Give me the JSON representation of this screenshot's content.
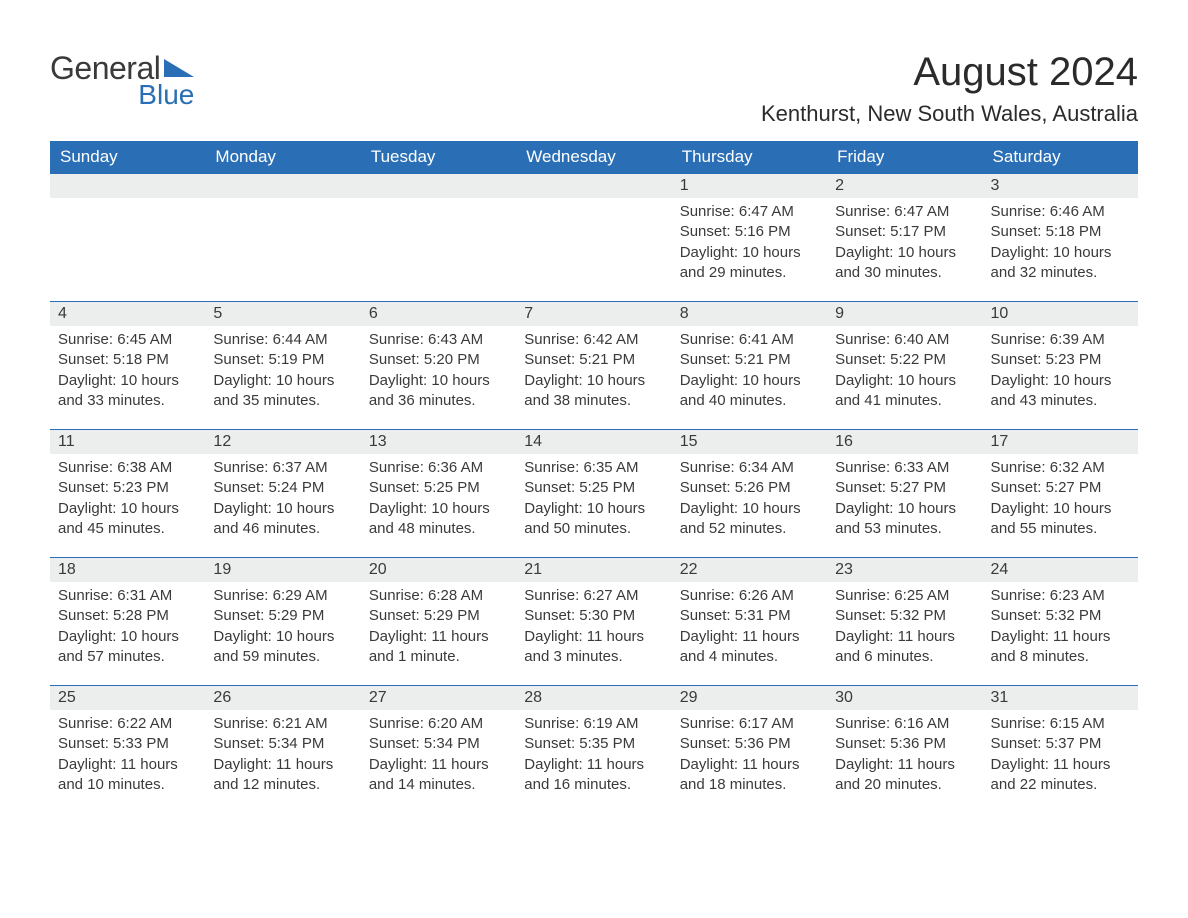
{
  "logo": {
    "general": "General",
    "blue": "Blue",
    "triangle_color": "#2a6fb5"
  },
  "title": "August 2024",
  "location": "Kenthurst, New South Wales, Australia",
  "dow": [
    "Sunday",
    "Monday",
    "Tuesday",
    "Wednesday",
    "Thursday",
    "Friday",
    "Saturday"
  ],
  "colors": {
    "header_bg": "#2a6fb5",
    "header_fg": "#ffffff",
    "daynum_bg": "#eceded",
    "text": "#3a3a3a",
    "row_border": "#2a6fb5",
    "page_bg": "#ffffff"
  },
  "typography": {
    "title_fontsize": 40,
    "location_fontsize": 22,
    "dow_fontsize": 17,
    "daynum_fontsize": 16,
    "body_fontsize": 15,
    "font_family": "Arial"
  },
  "layout": {
    "columns": 7,
    "rows": 5,
    "leading_blanks": 4
  },
  "days": [
    {
      "n": "1",
      "sunrise": "Sunrise: 6:47 AM",
      "sunset": "Sunset: 5:16 PM",
      "daylight": "Daylight: 10 hours and 29 minutes."
    },
    {
      "n": "2",
      "sunrise": "Sunrise: 6:47 AM",
      "sunset": "Sunset: 5:17 PM",
      "daylight": "Daylight: 10 hours and 30 minutes."
    },
    {
      "n": "3",
      "sunrise": "Sunrise: 6:46 AM",
      "sunset": "Sunset: 5:18 PM",
      "daylight": "Daylight: 10 hours and 32 minutes."
    },
    {
      "n": "4",
      "sunrise": "Sunrise: 6:45 AM",
      "sunset": "Sunset: 5:18 PM",
      "daylight": "Daylight: 10 hours and 33 minutes."
    },
    {
      "n": "5",
      "sunrise": "Sunrise: 6:44 AM",
      "sunset": "Sunset: 5:19 PM",
      "daylight": "Daylight: 10 hours and 35 minutes."
    },
    {
      "n": "6",
      "sunrise": "Sunrise: 6:43 AM",
      "sunset": "Sunset: 5:20 PM",
      "daylight": "Daylight: 10 hours and 36 minutes."
    },
    {
      "n": "7",
      "sunrise": "Sunrise: 6:42 AM",
      "sunset": "Sunset: 5:21 PM",
      "daylight": "Daylight: 10 hours and 38 minutes."
    },
    {
      "n": "8",
      "sunrise": "Sunrise: 6:41 AM",
      "sunset": "Sunset: 5:21 PM",
      "daylight": "Daylight: 10 hours and 40 minutes."
    },
    {
      "n": "9",
      "sunrise": "Sunrise: 6:40 AM",
      "sunset": "Sunset: 5:22 PM",
      "daylight": "Daylight: 10 hours and 41 minutes."
    },
    {
      "n": "10",
      "sunrise": "Sunrise: 6:39 AM",
      "sunset": "Sunset: 5:23 PM",
      "daylight": "Daylight: 10 hours and 43 minutes."
    },
    {
      "n": "11",
      "sunrise": "Sunrise: 6:38 AM",
      "sunset": "Sunset: 5:23 PM",
      "daylight": "Daylight: 10 hours and 45 minutes."
    },
    {
      "n": "12",
      "sunrise": "Sunrise: 6:37 AM",
      "sunset": "Sunset: 5:24 PM",
      "daylight": "Daylight: 10 hours and 46 minutes."
    },
    {
      "n": "13",
      "sunrise": "Sunrise: 6:36 AM",
      "sunset": "Sunset: 5:25 PM",
      "daylight": "Daylight: 10 hours and 48 minutes."
    },
    {
      "n": "14",
      "sunrise": "Sunrise: 6:35 AM",
      "sunset": "Sunset: 5:25 PM",
      "daylight": "Daylight: 10 hours and 50 minutes."
    },
    {
      "n": "15",
      "sunrise": "Sunrise: 6:34 AM",
      "sunset": "Sunset: 5:26 PM",
      "daylight": "Daylight: 10 hours and 52 minutes."
    },
    {
      "n": "16",
      "sunrise": "Sunrise: 6:33 AM",
      "sunset": "Sunset: 5:27 PM",
      "daylight": "Daylight: 10 hours and 53 minutes."
    },
    {
      "n": "17",
      "sunrise": "Sunrise: 6:32 AM",
      "sunset": "Sunset: 5:27 PM",
      "daylight": "Daylight: 10 hours and 55 minutes."
    },
    {
      "n": "18",
      "sunrise": "Sunrise: 6:31 AM",
      "sunset": "Sunset: 5:28 PM",
      "daylight": "Daylight: 10 hours and 57 minutes."
    },
    {
      "n": "19",
      "sunrise": "Sunrise: 6:29 AM",
      "sunset": "Sunset: 5:29 PM",
      "daylight": "Daylight: 10 hours and 59 minutes."
    },
    {
      "n": "20",
      "sunrise": "Sunrise: 6:28 AM",
      "sunset": "Sunset: 5:29 PM",
      "daylight": "Daylight: 11 hours and 1 minute."
    },
    {
      "n": "21",
      "sunrise": "Sunrise: 6:27 AM",
      "sunset": "Sunset: 5:30 PM",
      "daylight": "Daylight: 11 hours and 3 minutes."
    },
    {
      "n": "22",
      "sunrise": "Sunrise: 6:26 AM",
      "sunset": "Sunset: 5:31 PM",
      "daylight": "Daylight: 11 hours and 4 minutes."
    },
    {
      "n": "23",
      "sunrise": "Sunrise: 6:25 AM",
      "sunset": "Sunset: 5:32 PM",
      "daylight": "Daylight: 11 hours and 6 minutes."
    },
    {
      "n": "24",
      "sunrise": "Sunrise: 6:23 AM",
      "sunset": "Sunset: 5:32 PM",
      "daylight": "Daylight: 11 hours and 8 minutes."
    },
    {
      "n": "25",
      "sunrise": "Sunrise: 6:22 AM",
      "sunset": "Sunset: 5:33 PM",
      "daylight": "Daylight: 11 hours and 10 minutes."
    },
    {
      "n": "26",
      "sunrise": "Sunrise: 6:21 AM",
      "sunset": "Sunset: 5:34 PM",
      "daylight": "Daylight: 11 hours and 12 minutes."
    },
    {
      "n": "27",
      "sunrise": "Sunrise: 6:20 AM",
      "sunset": "Sunset: 5:34 PM",
      "daylight": "Daylight: 11 hours and 14 minutes."
    },
    {
      "n": "28",
      "sunrise": "Sunrise: 6:19 AM",
      "sunset": "Sunset: 5:35 PM",
      "daylight": "Daylight: 11 hours and 16 minutes."
    },
    {
      "n": "29",
      "sunrise": "Sunrise: 6:17 AM",
      "sunset": "Sunset: 5:36 PM",
      "daylight": "Daylight: 11 hours and 18 minutes."
    },
    {
      "n": "30",
      "sunrise": "Sunrise: 6:16 AM",
      "sunset": "Sunset: 5:36 PM",
      "daylight": "Daylight: 11 hours and 20 minutes."
    },
    {
      "n": "31",
      "sunrise": "Sunrise: 6:15 AM",
      "sunset": "Sunset: 5:37 PM",
      "daylight": "Daylight: 11 hours and 22 minutes."
    }
  ]
}
